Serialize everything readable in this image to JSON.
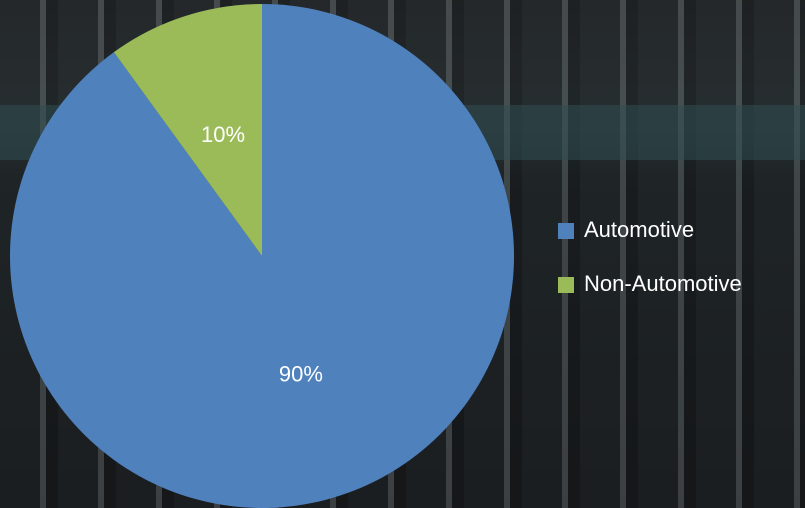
{
  "chart_data": {
    "type": "pie",
    "categories": [
      "Automotive",
      "Non-Automotive"
    ],
    "values": [
      90,
      10
    ],
    "value_labels": [
      "90%",
      "10%"
    ],
    "colors": [
      "#4f81bd",
      "#9bbb59"
    ],
    "legend": "right"
  }
}
